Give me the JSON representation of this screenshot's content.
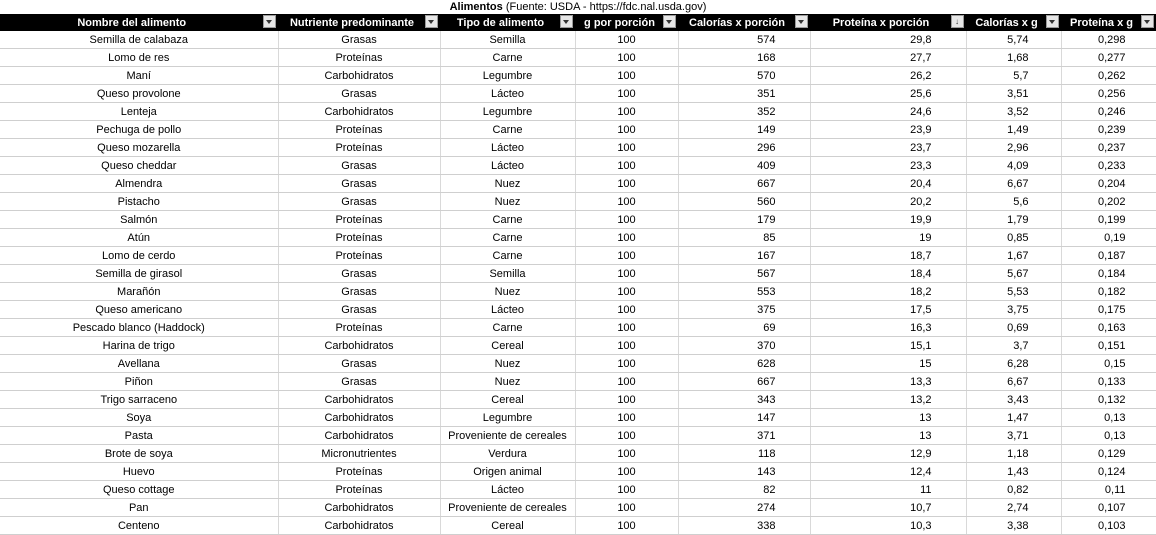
{
  "title": {
    "bold": "Alimentos",
    "rest": " (Fuente: USDA - https://fdc.nal.usda.gov)"
  },
  "columns": [
    "Nombre del alimento",
    "Nutriente predominante",
    "Tipo de alimento",
    "g por porción",
    "Calorías x porción",
    "Proteína x porción",
    "Calorías x g",
    "Proteína x g"
  ],
  "sorted_column_index": 5,
  "rows": [
    [
      "Semilla de calabaza",
      "Grasas",
      "Semilla",
      "100",
      "574",
      "29,8",
      "5,74",
      "0,298"
    ],
    [
      "Lomo de res",
      "Proteínas",
      "Carne",
      "100",
      "168",
      "27,7",
      "1,68",
      "0,277"
    ],
    [
      "Maní",
      "Carbohidratos",
      "Legumbre",
      "100",
      "570",
      "26,2",
      "5,7",
      "0,262"
    ],
    [
      "Queso provolone",
      "Grasas",
      "Lácteo",
      "100",
      "351",
      "25,6",
      "3,51",
      "0,256"
    ],
    [
      "Lenteja",
      "Carbohidratos",
      "Legumbre",
      "100",
      "352",
      "24,6",
      "3,52",
      "0,246"
    ],
    [
      "Pechuga de pollo",
      "Proteínas",
      "Carne",
      "100",
      "149",
      "23,9",
      "1,49",
      "0,239"
    ],
    [
      "Queso mozarella",
      "Proteínas",
      "Lácteo",
      "100",
      "296",
      "23,7",
      "2,96",
      "0,237"
    ],
    [
      "Queso cheddar",
      "Grasas",
      "Lácteo",
      "100",
      "409",
      "23,3",
      "4,09",
      "0,233"
    ],
    [
      "Almendra",
      "Grasas",
      "Nuez",
      "100",
      "667",
      "20,4",
      "6,67",
      "0,204"
    ],
    [
      "Pistacho",
      "Grasas",
      "Nuez",
      "100",
      "560",
      "20,2",
      "5,6",
      "0,202"
    ],
    [
      "Salmón",
      "Proteínas",
      "Carne",
      "100",
      "179",
      "19,9",
      "1,79",
      "0,199"
    ],
    [
      "Atún",
      "Proteínas",
      "Carne",
      "100",
      "85",
      "19",
      "0,85",
      "0,19"
    ],
    [
      "Lomo de cerdo",
      "Proteínas",
      "Carne",
      "100",
      "167",
      "18,7",
      "1,67",
      "0,187"
    ],
    [
      "Semilla de girasol",
      "Grasas",
      "Semilla",
      "100",
      "567",
      "18,4",
      "5,67",
      "0,184"
    ],
    [
      "Marañón",
      "Grasas",
      "Nuez",
      "100",
      "553",
      "18,2",
      "5,53",
      "0,182"
    ],
    [
      "Queso americano",
      "Grasas",
      "Lácteo",
      "100",
      "375",
      "17,5",
      "3,75",
      "0,175"
    ],
    [
      "Pescado blanco (Haddock)",
      "Proteínas",
      "Carne",
      "100",
      "69",
      "16,3",
      "0,69",
      "0,163"
    ],
    [
      "Harina de trigo",
      "Carbohidratos",
      "Cereal",
      "100",
      "370",
      "15,1",
      "3,7",
      "0,151"
    ],
    [
      "Avellana",
      "Grasas",
      "Nuez",
      "100",
      "628",
      "15",
      "6,28",
      "0,15"
    ],
    [
      "Piñon",
      "Grasas",
      "Nuez",
      "100",
      "667",
      "13,3",
      "6,67",
      "0,133"
    ],
    [
      "Trigo sarraceno",
      "Carbohidratos",
      "Cereal",
      "100",
      "343",
      "13,2",
      "3,43",
      "0,132"
    ],
    [
      "Soya",
      "Carbohidratos",
      "Legumbre",
      "100",
      "147",
      "13",
      "1,47",
      "0,13"
    ],
    [
      "Pasta",
      "Carbohidratos",
      "Proveniente de cereales",
      "100",
      "371",
      "13",
      "3,71",
      "0,13"
    ],
    [
      "Brote de soya",
      "Micronutrientes",
      "Verdura",
      "100",
      "118",
      "12,9",
      "1,18",
      "0,129"
    ],
    [
      "Huevo",
      "Proteínas",
      "Origen animal",
      "100",
      "143",
      "12,4",
      "1,43",
      "0,124"
    ],
    [
      "Queso cottage",
      "Proteínas",
      "Lácteo",
      "100",
      "82",
      "11",
      "0,82",
      "0,11"
    ],
    [
      "Pan",
      "Carbohidratos",
      "Proveniente de cereales",
      "100",
      "274",
      "10,7",
      "2,74",
      "0,107"
    ],
    [
      "Centeno",
      "Carbohidratos",
      "Cereal",
      "100",
      "338",
      "10,3",
      "3,38",
      "0,103"
    ]
  ]
}
